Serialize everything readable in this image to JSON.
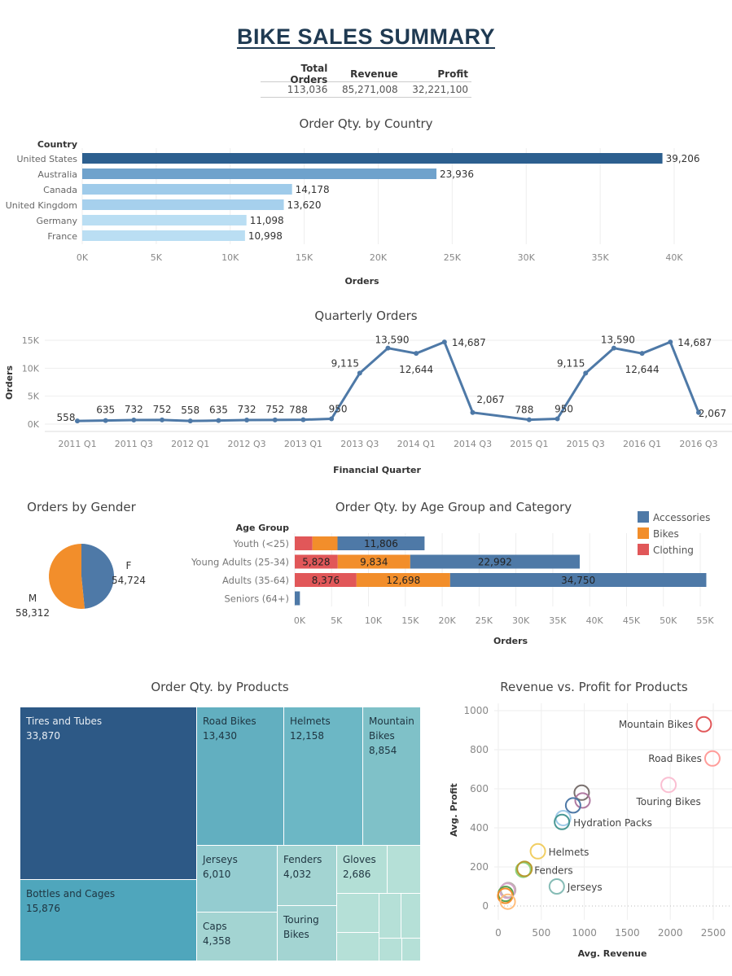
{
  "title": "BIKE SALES SUMMARY",
  "kpi": {
    "headers": [
      "Total Orders",
      "Revenue",
      "Profit"
    ],
    "values": [
      "113,036",
      "85,271,008",
      "32,221,100"
    ]
  },
  "chart_data": [
    {
      "id": "country",
      "type": "bar",
      "title": "Order Qty. by Country",
      "ylabel": "Country",
      "xlabel": "Orders",
      "categories": [
        "United States",
        "Australia",
        "Canada",
        "United Kingdom",
        "Germany",
        "France"
      ],
      "values": [
        39206,
        23936,
        14178,
        13620,
        11098,
        10998
      ],
      "labels": [
        "39,206",
        "23,936",
        "14,178",
        "13,620",
        "11,098",
        "10,998"
      ],
      "colors": [
        "#2c5f8f",
        "#6fa2cc",
        "#9fcbea",
        "#a6d0ed",
        "#badef3",
        "#badef3"
      ],
      "xlim": [
        0,
        40000
      ],
      "ticks": [
        0,
        5000,
        10000,
        15000,
        20000,
        25000,
        30000,
        35000,
        40000
      ],
      "tick_labels": [
        "0K",
        "5K",
        "10K",
        "15K",
        "20K",
        "25K",
        "30K",
        "35K",
        "40K"
      ],
      "grid": true
    },
    {
      "id": "quarterly",
      "type": "line",
      "title": "Quarterly Orders",
      "xlabel": "Financial Quarter",
      "ylabel": "Orders",
      "x": [
        "2011 Q1",
        "2011 Q2",
        "2011 Q3",
        "2011 Q4",
        "2012 Q1",
        "2012 Q2",
        "2012 Q3",
        "2012 Q4",
        "2013 Q1",
        "2013 Q2",
        "2013 Q3",
        "2013 Q4",
        "2014 Q1",
        "2014 Q2",
        "2014 Q3",
        "2014 Q4",
        "2015 Q1",
        "2015 Q2",
        "2015 Q3",
        "2015 Q4",
        "2016 Q1",
        "2016 Q2",
        "2016 Q3"
      ],
      "values": [
        558,
        635,
        732,
        752,
        558,
        635,
        732,
        752,
        788,
        950,
        9115,
        13590,
        12644,
        14687,
        2067,
        null,
        788,
        950,
        9115,
        13590,
        12644,
        14687,
        2067
      ],
      "labels": [
        "558",
        "635",
        "732",
        "752",
        "558",
        "635",
        "732",
        "752",
        "788",
        "950",
        "9,115",
        "13,590",
        "12,644",
        "14,687",
        "2,067",
        "",
        "788",
        "950",
        "9,115",
        "13,590",
        "12,644",
        "14,687",
        "2,067"
      ],
      "x_tick_labels": [
        "2011 Q1",
        "2011 Q3",
        "2012 Q1",
        "2012 Q3",
        "2013 Q1",
        "2013 Q3",
        "2014 Q1",
        "2014 Q3",
        "2015 Q1",
        "2015 Q3",
        "2016 Q1",
        "2016 Q3"
      ],
      "ylim": [
        0,
        15000
      ],
      "y_ticks": [
        0,
        5000,
        10000,
        15000
      ],
      "y_tick_labels": [
        "0K",
        "5K",
        "10K",
        "15K"
      ],
      "color": "#4e79a7",
      "grid": true
    },
    {
      "id": "gender",
      "type": "pie",
      "title": "Orders by Gender",
      "slices": [
        {
          "name": "F",
          "value": 54724,
          "label": "54,724",
          "color": "#4e79a7"
        },
        {
          "name": "M",
          "value": 58312,
          "label": "58,312",
          "color": "#f28e2b"
        }
      ]
    },
    {
      "id": "age",
      "type": "bar",
      "stacked": true,
      "orientation": "horizontal",
      "title": "Order Qty. by Age Group and Category",
      "ylabel": "Age Group",
      "xlabel": "Orders",
      "categories": [
        "Youth (<25)",
        "Young Adults (25-34)",
        "Adults (35-64)",
        "Seniors (64+)"
      ],
      "series": [
        {
          "name": "Clothing",
          "color": "#e15759",
          "values": [
            2400,
            5828,
            8376,
            0
          ],
          "labels": [
            "",
            "5,828",
            "8,376",
            ""
          ]
        },
        {
          "name": "Bikes",
          "color": "#f28e2b",
          "values": [
            3400,
            9834,
            12698,
            0
          ],
          "labels": [
            "",
            "9,834",
            "12,698",
            ""
          ]
        },
        {
          "name": "Accessories",
          "color": "#4e79a7",
          "values": [
            11806,
            22992,
            34750,
            700
          ],
          "labels": [
            "11,806",
            "22,992",
            "34,750",
            ""
          ]
        }
      ],
      "legend_order": [
        "Accessories",
        "Bikes",
        "Clothing"
      ],
      "legend": "top-right",
      "xlim": [
        0,
        55000
      ],
      "ticks": [
        0,
        5000,
        10000,
        15000,
        20000,
        25000,
        30000,
        35000,
        40000,
        45000,
        50000,
        55000
      ],
      "tick_labels": [
        "0K",
        "5K",
        "10K",
        "15K",
        "20K",
        "25K",
        "30K",
        "35K",
        "40K",
        "45K",
        "50K",
        "55K"
      ],
      "grid": true
    },
    {
      "id": "products",
      "type": "treemap",
      "title": "Order Qty. by Products",
      "items": [
        {
          "name": "Tires and Tubes",
          "label": "33,870",
          "color": "#2d5986",
          "text": "#e8eef4"
        },
        {
          "name": "Bottles and Cages",
          "label": "15,876",
          "color": "#4fa6bc",
          "text": "#1e3440"
        },
        {
          "name": "Road Bikes",
          "label": "13,430",
          "color": "#62afc0",
          "text": "#1e3440"
        },
        {
          "name": "Helmets",
          "label": "12,158",
          "color": "#6cb7c5",
          "text": "#1e3440"
        },
        {
          "name": "Mountain Bikes",
          "label": "8,854",
          "color": "#7fc1c8",
          "text": "#1e3440"
        },
        {
          "name": "Jerseys",
          "label": "6,010",
          "color": "#94ccd0",
          "text": "#1e3440"
        },
        {
          "name": "Caps",
          "label": "4,358",
          "color": "#a3d4d2",
          "text": "#1e3440"
        },
        {
          "name": "Fenders",
          "label": "4,032",
          "color": "#a3d4d2",
          "text": "#1e3440"
        },
        {
          "name": "Touring Bikes",
          "label": "",
          "color": "#a3d4d2",
          "text": "#1e3440"
        },
        {
          "name": "Gloves",
          "label": "2,686",
          "color": "#b3dfd6",
          "text": "#1e3440"
        }
      ],
      "unlabeled_color": "#b5e0d7",
      "unlabeled_count": 7
    },
    {
      "id": "revprofit",
      "type": "scatter",
      "title": "Revenue vs. Profit for Products",
      "xlabel": "Avg. Revenue",
      "ylabel": "Avg. Profit",
      "xlim": [
        0,
        2600
      ],
      "ylim": [
        -80,
        1050
      ],
      "x_ticks": [
        0,
        500,
        1000,
        1500,
        2000,
        2500
      ],
      "y_ticks": [
        0,
        200,
        400,
        600,
        800,
        1000
      ],
      "points": [
        {
          "name": "Mountain Bikes",
          "x": 2390,
          "y": 930,
          "color": "#e15759",
          "labeled": true
        },
        {
          "name": "Road Bikes",
          "x": 2490,
          "y": 755,
          "color": "#ff9d9a",
          "labeled": true
        },
        {
          "name": "Touring Bikes",
          "x": 1980,
          "y": 620,
          "color": "#fabfd2",
          "labeled": true
        },
        {
          "name": "",
          "x": 970,
          "y": 580,
          "color": "#79706e"
        },
        {
          "name": "",
          "x": 980,
          "y": 540,
          "color": "#b07aa1"
        },
        {
          "name": "",
          "x": 870,
          "y": 515,
          "color": "#4e79a7"
        },
        {
          "name": "",
          "x": 755,
          "y": 450,
          "color": "#a0cbe8"
        },
        {
          "name": "Hydration Packs",
          "x": 740,
          "y": 430,
          "color": "#499894",
          "labeled": true
        },
        {
          "name": "Helmets",
          "x": 460,
          "y": 280,
          "color": "#f1ce63",
          "labeled": true
        },
        {
          "name": "",
          "x": 290,
          "y": 185,
          "color": "#8cd17d"
        },
        {
          "name": "Fenders",
          "x": 305,
          "y": 190,
          "color": "#b6992d",
          "labeled": true
        },
        {
          "name": "Jerseys",
          "x": 680,
          "y": 100,
          "color": "#86bcb6",
          "labeled": true
        },
        {
          "name": "",
          "x": 115,
          "y": 82,
          "color": "#bab0ac"
        },
        {
          "name": "",
          "x": 105,
          "y": 78,
          "color": "#d4a6c8"
        },
        {
          "name": "",
          "x": 85,
          "y": 62,
          "color": "#59a14f"
        },
        {
          "name": "",
          "x": 80,
          "y": 52,
          "color": "#f28e2b"
        },
        {
          "name": "",
          "x": 110,
          "y": 22,
          "color": "#ffbe7d"
        }
      ],
      "grid": true
    }
  ]
}
